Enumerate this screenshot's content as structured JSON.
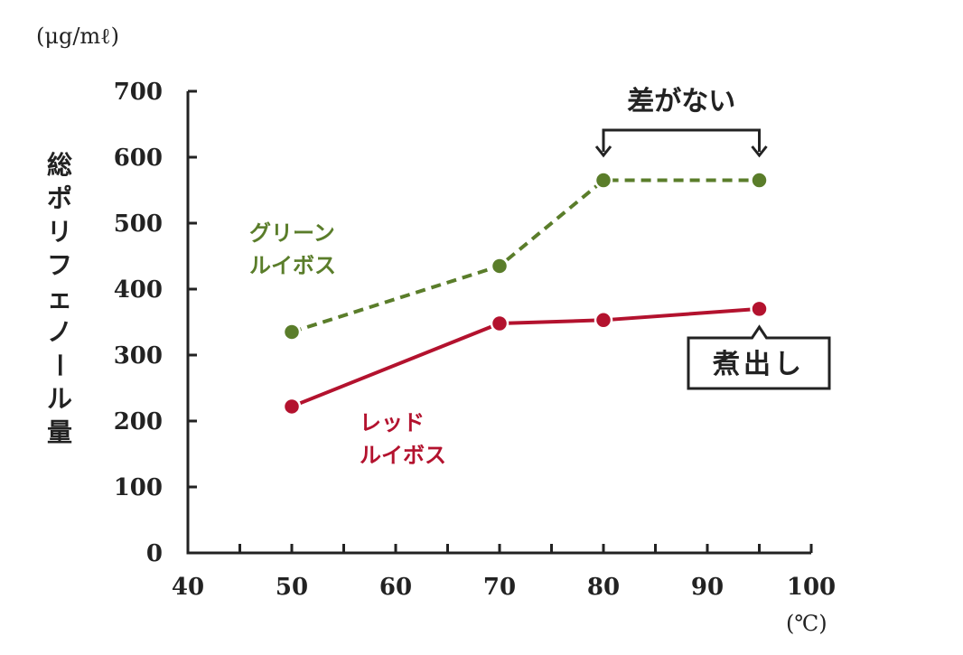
{
  "chart_data": {
    "type": "line",
    "y_unit": "(μg/mℓ)",
    "x_unit": "(℃)",
    "ylabel": "総ポリフェノール量",
    "xlim": [
      40,
      100
    ],
    "ylim": [
      0,
      700
    ],
    "x_ticks": [
      40,
      50,
      60,
      70,
      80,
      90,
      100
    ],
    "y_ticks": [
      0,
      100,
      200,
      300,
      400,
      500,
      600,
      700
    ],
    "series": [
      {
        "name_lines": [
          "グリーン",
          "ルイボス"
        ],
        "color": "#5a7d2a",
        "dashed": true,
        "points": [
          {
            "x": 50,
            "y": 335
          },
          {
            "x": 70,
            "y": 435
          },
          {
            "x": 80,
            "y": 565
          },
          {
            "x": 95,
            "y": 565
          }
        ]
      },
      {
        "name_lines": [
          "レッド",
          "ルイボス"
        ],
        "color": "#b3122e",
        "dashed": false,
        "points": [
          {
            "x": 50,
            "y": 222
          },
          {
            "x": 70,
            "y": 348
          },
          {
            "x": 80,
            "y": 353
          },
          {
            "x": 95,
            "y": 370
          }
        ]
      }
    ],
    "annotations": {
      "bracket_label": "差がない",
      "bracket_from_x": 80,
      "bracket_to_x": 95,
      "callout_label": "煮出し",
      "callout_x": 95
    },
    "grid": false
  }
}
